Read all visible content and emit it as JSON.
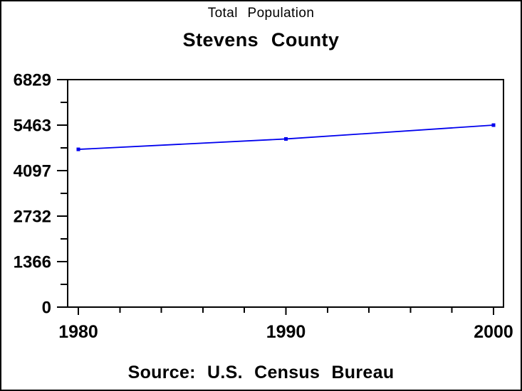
{
  "titles": {
    "subtitle": "Total Population",
    "title": "Stevens County"
  },
  "footer": {
    "source": "Source: U.S. Census Bureau"
  },
  "colors": {
    "line": "#0000ee",
    "axis": "#000000",
    "background": "#ffffff"
  },
  "chart_data": {
    "type": "line",
    "title": "Total Population",
    "subtitle": "Stevens County",
    "x": [
      1980,
      1990,
      2000
    ],
    "series": [
      {
        "name": "Total Population",
        "values": [
          4736,
          5048,
          5463
        ]
      }
    ],
    "xlabel": "",
    "ylabel": "",
    "xlim": [
      1980,
      2000
    ],
    "ylim": [
      0,
      6829
    ],
    "y_tick_labels": [
      "0",
      "1366",
      "2732",
      "4097",
      "5463",
      "6829"
    ],
    "y_tick_values": [
      0,
      1366,
      2732,
      4097,
      5463,
      6829
    ],
    "y_minor_ticks": "midpoints",
    "x_tick_labels": [
      "1980",
      "1990",
      "2000"
    ],
    "x_tick_values": [
      1980,
      1990,
      2000
    ],
    "x_minor_step": 2,
    "grid": false,
    "legend": "none",
    "marker": "square",
    "annotation": "Source: U.S. Census Bureau"
  }
}
